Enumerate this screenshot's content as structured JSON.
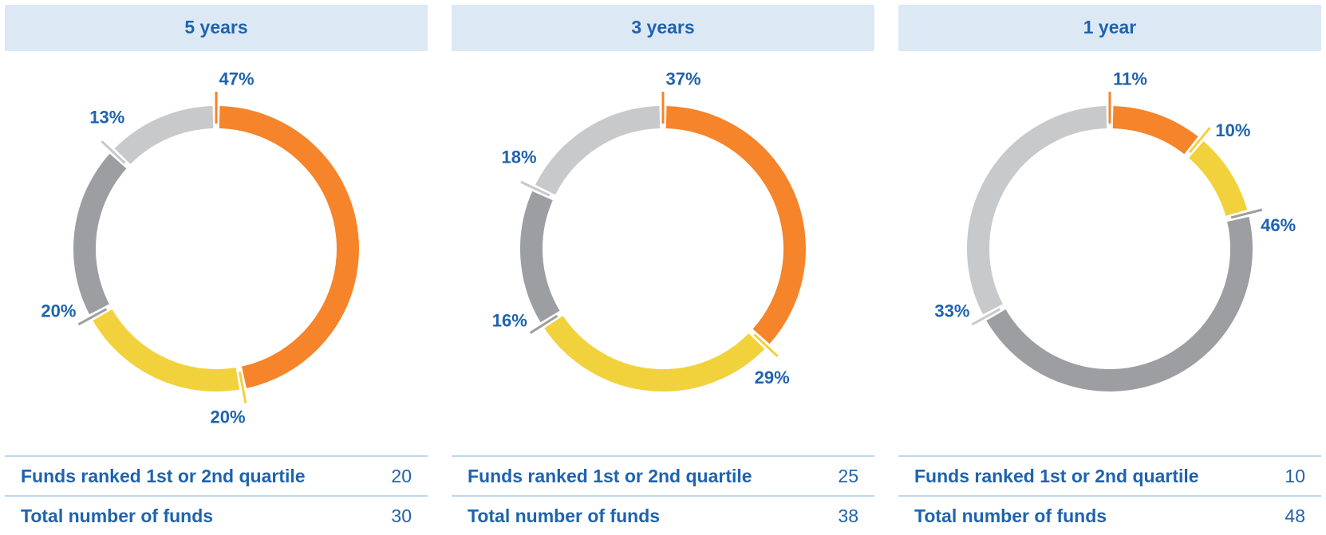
{
  "chart_data": [
    {
      "type": "pie",
      "donut": true,
      "title": "5 years",
      "values": [
        47,
        20,
        20,
        13
      ],
      "value_labels": [
        "47%",
        "20%",
        "20%",
        "13%"
      ],
      "colors": [
        "#f5842a",
        "#f2d23c",
        "#9d9ea2",
        "#c8c9cb"
      ],
      "table": {
        "rows": [
          [
            "Funds ranked 1st or 2nd quartile",
            20
          ],
          [
            "Total number of funds",
            30
          ]
        ]
      }
    },
    {
      "type": "pie",
      "donut": true,
      "title": "3 years",
      "values": [
        37,
        29,
        16,
        18
      ],
      "value_labels": [
        "37%",
        "29%",
        "16%",
        "18%"
      ],
      "colors": [
        "#f5842a",
        "#f2d23c",
        "#9d9ea2",
        "#c8c9cb"
      ],
      "table": {
        "rows": [
          [
            "Funds ranked 1st or 2nd quartile",
            25
          ],
          [
            "Total number of funds",
            38
          ]
        ]
      }
    },
    {
      "type": "pie",
      "donut": true,
      "title": "1 year",
      "values": [
        11,
        10,
        46,
        33
      ],
      "value_labels": [
        "11%",
        "10%",
        "46%",
        "33%"
      ],
      "colors": [
        "#f5842a",
        "#f2d23c",
        "#9d9ea2",
        "#c8c9cb"
      ],
      "table": {
        "rows": [
          [
            "Funds ranked 1st or 2nd quartile",
            10
          ],
          [
            "Total number of funds",
            48
          ]
        ]
      }
    }
  ]
}
